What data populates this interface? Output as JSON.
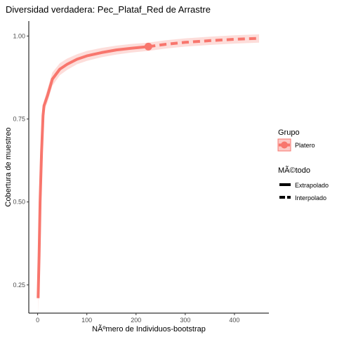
{
  "chart_data": {
    "type": "line",
    "title": "Diversidad verdadera: Pec_Plataf_Red de Arrastre",
    "xlabel": "NÃºmero de Individuos-bootstrap",
    "ylabel": "Cobertura de muestreo",
    "xlim": [
      -18,
      470
    ],
    "ylim": [
      0.165,
      1.045
    ],
    "x_ticks": [
      0,
      100,
      200,
      300,
      400
    ],
    "y_ticks": [
      0.25,
      0.5,
      0.75,
      1.0
    ],
    "x_tick_labels": [
      "0",
      "100",
      "200",
      "300",
      "400"
    ],
    "y_tick_labels": [
      "0.25",
      "0.50",
      "0.75",
      "1.00"
    ],
    "grid": false,
    "legend_position": "right",
    "series": [
      {
        "name": "Platero",
        "color": "#F8766D",
        "observed_point": {
          "x": 225,
          "y": 0.968
        },
        "interpolated": [
          {
            "x": 1,
            "y": 0.21
          },
          {
            "x": 3,
            "y": 0.34
          },
          {
            "x": 5,
            "y": 0.5
          },
          {
            "x": 8,
            "y": 0.65
          },
          {
            "x": 11,
            "y": 0.76
          },
          {
            "x": 13,
            "y": 0.79
          },
          {
            "x": 20,
            "y": 0.82
          },
          {
            "x": 30,
            "y": 0.87
          },
          {
            "x": 45,
            "y": 0.9
          },
          {
            "x": 60,
            "y": 0.915
          },
          {
            "x": 80,
            "y": 0.93
          },
          {
            "x": 100,
            "y": 0.94
          },
          {
            "x": 130,
            "y": 0.95
          },
          {
            "x": 160,
            "y": 0.958
          },
          {
            "x": 190,
            "y": 0.963
          },
          {
            "x": 225,
            "y": 0.968
          }
        ],
        "extrapolated": [
          {
            "x": 225,
            "y": 0.968
          },
          {
            "x": 260,
            "y": 0.975
          },
          {
            "x": 300,
            "y": 0.981
          },
          {
            "x": 350,
            "y": 0.986
          },
          {
            "x": 400,
            "y": 0.99
          },
          {
            "x": 450,
            "y": 0.993
          }
        ],
        "ci_lower": [
          {
            "x": 1,
            "y": 0.16
          },
          {
            "x": 3,
            "y": 0.32
          },
          {
            "x": 5,
            "y": 0.48
          },
          {
            "x": 8,
            "y": 0.63
          },
          {
            "x": 11,
            "y": 0.745
          },
          {
            "x": 13,
            "y": 0.775
          },
          {
            "x": 20,
            "y": 0.8
          },
          {
            "x": 30,
            "y": 0.85
          },
          {
            "x": 45,
            "y": 0.882
          },
          {
            "x": 60,
            "y": 0.898
          },
          {
            "x": 80,
            "y": 0.915
          },
          {
            "x": 100,
            "y": 0.925
          },
          {
            "x": 130,
            "y": 0.936
          },
          {
            "x": 160,
            "y": 0.944
          },
          {
            "x": 190,
            "y": 0.95
          },
          {
            "x": 225,
            "y": 0.955
          },
          {
            "x": 260,
            "y": 0.962
          },
          {
            "x": 300,
            "y": 0.968
          },
          {
            "x": 350,
            "y": 0.973
          },
          {
            "x": 400,
            "y": 0.977
          },
          {
            "x": 450,
            "y": 0.98
          }
        ],
        "ci_upper": [
          {
            "x": 1,
            "y": 0.26
          },
          {
            "x": 3,
            "y": 0.36
          },
          {
            "x": 5,
            "y": 0.52
          },
          {
            "x": 8,
            "y": 0.67
          },
          {
            "x": 11,
            "y": 0.775
          },
          {
            "x": 13,
            "y": 0.805
          },
          {
            "x": 20,
            "y": 0.84
          },
          {
            "x": 30,
            "y": 0.89
          },
          {
            "x": 45,
            "y": 0.918
          },
          {
            "x": 60,
            "y": 0.932
          },
          {
            "x": 80,
            "y": 0.945
          },
          {
            "x": 100,
            "y": 0.955
          },
          {
            "x": 130,
            "y": 0.964
          },
          {
            "x": 160,
            "y": 0.971
          },
          {
            "x": 190,
            "y": 0.976
          },
          {
            "x": 225,
            "y": 0.98
          },
          {
            "x": 260,
            "y": 0.987
          },
          {
            "x": 300,
            "y": 0.993
          },
          {
            "x": 350,
            "y": 0.998
          },
          {
            "x": 400,
            "y": 1.002
          },
          {
            "x": 450,
            "y": 1.005
          }
        ]
      }
    ]
  },
  "legend": {
    "group_title": "Grupo",
    "group_items": [
      {
        "label": "Platero",
        "color": "#F8766D"
      }
    ],
    "method_title": "MÃ©todo",
    "method_items": [
      {
        "label": "Extrapolado",
        "style": "solid"
      },
      {
        "label": "Interpolado",
        "style": "dashed"
      }
    ]
  }
}
